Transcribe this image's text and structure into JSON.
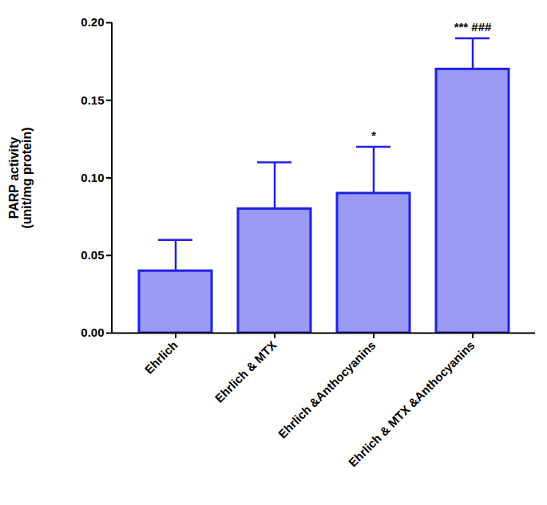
{
  "chart_data": {
    "type": "bar",
    "ylabel": "PARP activity\n(unit/mg protein)",
    "categories": [
      "Ehrlich",
      "Ehrlich & MTX",
      "Ehrlich &Anthocyanins",
      "Ehrlich & MTX &Anthocyanins"
    ],
    "values": [
      0.04,
      0.08,
      0.09,
      0.17
    ],
    "errors": [
      0.02,
      0.03,
      0.03,
      0.02
    ],
    "significance": [
      null,
      null,
      "*",
      "*** ###"
    ],
    "color": "#1f1fe6",
    "ylim": [
      0,
      0.2
    ],
    "yticks": [
      {
        "value": 0,
        "label": "0.00"
      },
      {
        "value": 0.05,
        "label": "0.05"
      },
      {
        "value": 0.1,
        "label": "0.10"
      },
      {
        "value": 0.15,
        "label": "0.15"
      },
      {
        "value": 0.2,
        "label": "0.20"
      }
    ],
    "grid": false
  }
}
